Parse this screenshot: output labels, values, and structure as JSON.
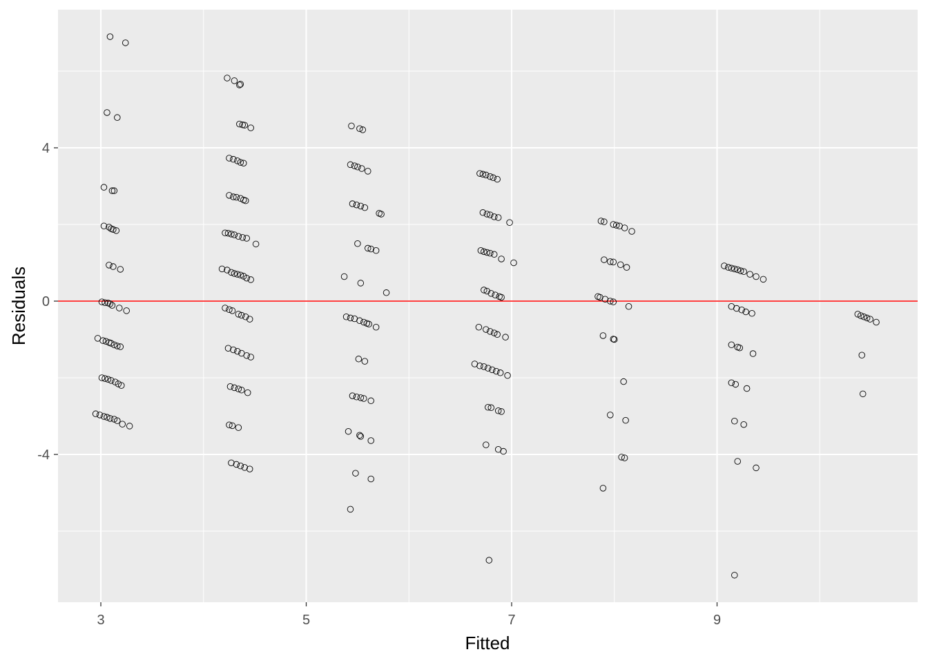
{
  "chart_data": {
    "type": "scatter",
    "title": "",
    "xlabel": "Fitted",
    "ylabel": "Residuals",
    "xlim": [
      2.583,
      10.953
    ],
    "ylim": [
      -7.856,
      7.604
    ],
    "x_ticks": [
      3,
      5,
      7,
      9
    ],
    "x_tick_labels": [
      "3",
      "5",
      "7",
      "9"
    ],
    "x_minor_gridlines": [
      4,
      6,
      8,
      10
    ],
    "y_ticks": [
      -4,
      0,
      4
    ],
    "y_tick_labels": [
      "-4",
      "0",
      "4"
    ],
    "y_minor_gridlines": [
      -6,
      -2,
      2,
      6
    ],
    "grid": true,
    "legend": "none",
    "reference_line": {
      "y": 0,
      "color": "#ff0000"
    },
    "colors": {
      "panel_background": "#ebebeb",
      "gridline": "#ffffff",
      "point_stroke": "#000000",
      "reference_line": "#ff0000",
      "tick_label": "#4d4d4d",
      "axis_title": "#000000"
    },
    "points": [
      [
        3.09,
        6.9
      ],
      [
        3.24,
        6.74
      ],
      [
        3.06,
        4.92
      ],
      [
        3.16,
        4.79
      ],
      [
        3.03,
        2.97
      ],
      [
        3.11,
        2.88
      ],
      [
        3.13,
        2.88
      ],
      [
        3.03,
        1.96
      ],
      [
        3.08,
        1.93
      ],
      [
        3.1,
        1.89
      ],
      [
        3.12,
        1.87
      ],
      [
        3.15,
        1.84
      ],
      [
        3.08,
        0.94
      ],
      [
        3.12,
        0.9
      ],
      [
        3.19,
        0.83
      ],
      [
        3.01,
        -0.02
      ],
      [
        3.04,
        -0.04
      ],
      [
        3.07,
        -0.05
      ],
      [
        3.09,
        -0.07
      ],
      [
        3.11,
        -0.11
      ],
      [
        3.18,
        -0.18
      ],
      [
        3.25,
        -0.25
      ],
      [
        2.97,
        -0.97
      ],
      [
        3.02,
        -1.03
      ],
      [
        3.05,
        -1.05
      ],
      [
        3.08,
        -1.08
      ],
      [
        3.1,
        -1.1
      ],
      [
        3.13,
        -1.14
      ],
      [
        3.16,
        -1.17
      ],
      [
        3.19,
        -1.19
      ],
      [
        3.01,
        -2.0
      ],
      [
        3.04,
        -2.02
      ],
      [
        3.07,
        -2.04
      ],
      [
        3.1,
        -2.07
      ],
      [
        3.14,
        -2.11
      ],
      [
        3.17,
        -2.16
      ],
      [
        3.2,
        -2.2
      ],
      [
        2.95,
        -2.94
      ],
      [
        2.99,
        -2.97
      ],
      [
        3.03,
        -3.01
      ],
      [
        3.06,
        -3.03
      ],
      [
        3.09,
        -3.06
      ],
      [
        3.13,
        -3.08
      ],
      [
        3.16,
        -3.12
      ],
      [
        3.21,
        -3.21
      ],
      [
        3.28,
        -3.26
      ],
      [
        4.23,
        5.82
      ],
      [
        4.3,
        5.75
      ],
      [
        4.36,
        5.66
      ],
      [
        4.35,
        5.64
      ],
      [
        4.35,
        4.62
      ],
      [
        4.38,
        4.6
      ],
      [
        4.4,
        4.59
      ],
      [
        4.46,
        4.52
      ],
      [
        4.25,
        3.73
      ],
      [
        4.29,
        3.7
      ],
      [
        4.33,
        3.66
      ],
      [
        4.36,
        3.62
      ],
      [
        4.39,
        3.6
      ],
      [
        4.25,
        2.76
      ],
      [
        4.29,
        2.72
      ],
      [
        4.32,
        2.71
      ],
      [
        4.36,
        2.68
      ],
      [
        4.39,
        2.64
      ],
      [
        4.41,
        2.62
      ],
      [
        4.21,
        1.78
      ],
      [
        4.24,
        1.77
      ],
      [
        4.27,
        1.75
      ],
      [
        4.3,
        1.73
      ],
      [
        4.34,
        1.69
      ],
      [
        4.38,
        1.66
      ],
      [
        4.42,
        1.64
      ],
      [
        4.51,
        1.49
      ],
      [
        4.18,
        0.84
      ],
      [
        4.23,
        0.81
      ],
      [
        4.27,
        0.75
      ],
      [
        4.3,
        0.72
      ],
      [
        4.33,
        0.7
      ],
      [
        4.36,
        0.68
      ],
      [
        4.39,
        0.65
      ],
      [
        4.42,
        0.6
      ],
      [
        4.46,
        0.56
      ],
      [
        4.21,
        -0.18
      ],
      [
        4.25,
        -0.22
      ],
      [
        4.28,
        -0.25
      ],
      [
        4.34,
        -0.34
      ],
      [
        4.37,
        -0.37
      ],
      [
        4.41,
        -0.41
      ],
      [
        4.45,
        -0.47
      ],
      [
        4.24,
        -1.23
      ],
      [
        4.29,
        -1.27
      ],
      [
        4.33,
        -1.31
      ],
      [
        4.37,
        -1.36
      ],
      [
        4.42,
        -1.42
      ],
      [
        4.46,
        -1.46
      ],
      [
        4.26,
        -2.23
      ],
      [
        4.3,
        -2.26
      ],
      [
        4.34,
        -2.29
      ],
      [
        4.37,
        -2.32
      ],
      [
        4.43,
        -2.39
      ],
      [
        4.25,
        -3.23
      ],
      [
        4.28,
        -3.25
      ],
      [
        4.34,
        -3.3
      ],
      [
        4.27,
        -4.22
      ],
      [
        4.32,
        -4.26
      ],
      [
        4.36,
        -4.3
      ],
      [
        4.4,
        -4.34
      ],
      [
        4.45,
        -4.38
      ],
      [
        5.44,
        4.57
      ],
      [
        5.52,
        4.5
      ],
      [
        5.55,
        4.47
      ],
      [
        5.43,
        3.56
      ],
      [
        5.47,
        3.53
      ],
      [
        5.5,
        3.5
      ],
      [
        5.54,
        3.46
      ],
      [
        5.6,
        3.39
      ],
      [
        5.45,
        2.54
      ],
      [
        5.49,
        2.51
      ],
      [
        5.53,
        2.48
      ],
      [
        5.57,
        2.44
      ],
      [
        5.71,
        2.29
      ],
      [
        5.73,
        2.27
      ],
      [
        5.5,
        1.5
      ],
      [
        5.6,
        1.38
      ],
      [
        5.63,
        1.36
      ],
      [
        5.68,
        1.32
      ],
      [
        5.37,
        0.64
      ],
      [
        5.53,
        0.47
      ],
      [
        5.78,
        0.22
      ],
      [
        5.39,
        -0.41
      ],
      [
        5.43,
        -0.44
      ],
      [
        5.47,
        -0.46
      ],
      [
        5.52,
        -0.51
      ],
      [
        5.56,
        -0.55
      ],
      [
        5.59,
        -0.58
      ],
      [
        5.61,
        -0.6
      ],
      [
        5.68,
        -0.68
      ],
      [
        5.51,
        -1.51
      ],
      [
        5.57,
        -1.57
      ],
      [
        5.45,
        -2.47
      ],
      [
        5.49,
        -2.5
      ],
      [
        5.53,
        -2.52
      ],
      [
        5.56,
        -2.54
      ],
      [
        5.63,
        -2.6
      ],
      [
        5.41,
        -3.4
      ],
      [
        5.52,
        -3.5
      ],
      [
        5.53,
        -3.53
      ],
      [
        5.63,
        -3.64
      ],
      [
        5.48,
        -4.49
      ],
      [
        5.63,
        -4.64
      ],
      [
        5.43,
        -5.43
      ],
      [
        6.69,
        3.33
      ],
      [
        6.72,
        3.31
      ],
      [
        6.75,
        3.29
      ],
      [
        6.79,
        3.25
      ],
      [
        6.82,
        3.22
      ],
      [
        6.86,
        3.18
      ],
      [
        6.72,
        2.31
      ],
      [
        6.76,
        2.27
      ],
      [
        6.79,
        2.25
      ],
      [
        6.83,
        2.2
      ],
      [
        6.87,
        2.18
      ],
      [
        6.98,
        2.05
      ],
      [
        6.7,
        1.32
      ],
      [
        6.73,
        1.29
      ],
      [
        6.76,
        1.27
      ],
      [
        6.79,
        1.25
      ],
      [
        6.83,
        1.22
      ],
      [
        6.9,
        1.1
      ],
      [
        7.02,
        1.0
      ],
      [
        6.73,
        0.29
      ],
      [
        6.76,
        0.26
      ],
      [
        6.8,
        0.2
      ],
      [
        6.84,
        0.16
      ],
      [
        6.88,
        0.12
      ],
      [
        6.9,
        0.1
      ],
      [
        6.68,
        -0.68
      ],
      [
        6.75,
        -0.74
      ],
      [
        6.79,
        -0.79
      ],
      [
        6.83,
        -0.83
      ],
      [
        6.86,
        -0.87
      ],
      [
        6.94,
        -0.94
      ],
      [
        6.64,
        -1.64
      ],
      [
        6.69,
        -1.69
      ],
      [
        6.73,
        -1.71
      ],
      [
        6.77,
        -1.75
      ],
      [
        6.81,
        -1.79
      ],
      [
        6.85,
        -1.83
      ],
      [
        6.89,
        -1.87
      ],
      [
        6.96,
        -1.94
      ],
      [
        6.77,
        -2.77
      ],
      [
        6.8,
        -2.78
      ],
      [
        6.87,
        -2.86
      ],
      [
        6.9,
        -2.88
      ],
      [
        6.75,
        -3.75
      ],
      [
        6.87,
        -3.87
      ],
      [
        6.92,
        -3.92
      ],
      [
        6.78,
        -6.76
      ],
      [
        7.87,
        2.09
      ],
      [
        7.9,
        2.07
      ],
      [
        7.99,
        2.0
      ],
      [
        8.02,
        1.98
      ],
      [
        8.05,
        1.96
      ],
      [
        8.1,
        1.91
      ],
      [
        8.17,
        1.82
      ],
      [
        7.9,
        1.08
      ],
      [
        7.96,
        1.03
      ],
      [
        7.99,
        1.02
      ],
      [
        8.06,
        0.95
      ],
      [
        8.12,
        0.88
      ],
      [
        7.84,
        0.12
      ],
      [
        7.86,
        0.1
      ],
      [
        7.91,
        0.05
      ],
      [
        7.96,
        0.0
      ],
      [
        7.99,
        -0.02
      ],
      [
        8.14,
        -0.14
      ],
      [
        7.89,
        -0.9
      ],
      [
        7.99,
        -0.99
      ],
      [
        8.0,
        -1.0
      ],
      [
        8.09,
        -2.1
      ],
      [
        7.96,
        -2.97
      ],
      [
        8.11,
        -3.11
      ],
      [
        8.07,
        -4.07
      ],
      [
        8.1,
        -4.09
      ],
      [
        7.89,
        -4.88
      ],
      [
        9.07,
        0.92
      ],
      [
        9.11,
        0.88
      ],
      [
        9.14,
        0.86
      ],
      [
        9.17,
        0.84
      ],
      [
        9.2,
        0.82
      ],
      [
        9.23,
        0.79
      ],
      [
        9.26,
        0.77
      ],
      [
        9.32,
        0.7
      ],
      [
        9.38,
        0.64
      ],
      [
        9.45,
        0.57
      ],
      [
        9.14,
        -0.14
      ],
      [
        9.19,
        -0.19
      ],
      [
        9.24,
        -0.23
      ],
      [
        9.28,
        -0.28
      ],
      [
        9.34,
        -0.32
      ],
      [
        9.14,
        -1.14
      ],
      [
        9.2,
        -1.2
      ],
      [
        9.22,
        -1.22
      ],
      [
        9.35,
        -1.37
      ],
      [
        9.14,
        -2.13
      ],
      [
        9.18,
        -2.17
      ],
      [
        9.29,
        -2.28
      ],
      [
        9.17,
        -3.13
      ],
      [
        9.26,
        -3.22
      ],
      [
        9.2,
        -4.18
      ],
      [
        9.38,
        -4.35
      ],
      [
        9.17,
        -7.15
      ],
      [
        10.37,
        -0.34
      ],
      [
        10.4,
        -0.38
      ],
      [
        10.43,
        -0.41
      ],
      [
        10.46,
        -0.44
      ],
      [
        10.49,
        -0.47
      ],
      [
        10.55,
        -0.55
      ],
      [
        10.41,
        -1.41
      ],
      [
        10.42,
        -2.42
      ]
    ]
  }
}
